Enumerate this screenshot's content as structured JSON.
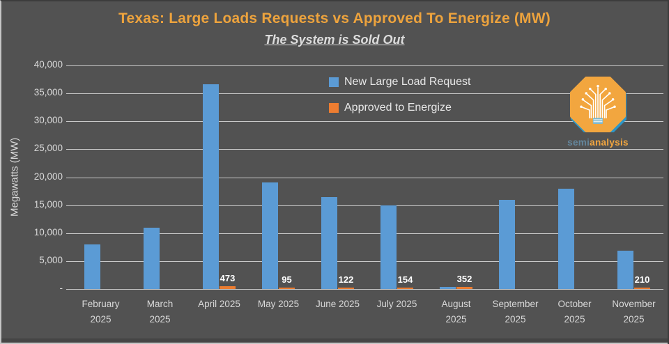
{
  "chart_data": {
    "type": "bar",
    "title": "Texas: Large Loads Requests vs Approved To Energize (MW)",
    "subtitle": "The System is Sold Out",
    "ylabel": "Megawatts (MW)",
    "ylim": [
      0,
      40000
    ],
    "ytick_step": 5000,
    "ytick_labels": [
      "-",
      "5,000",
      "10,000",
      "15,000",
      "20,000",
      "25,000",
      "30,000",
      "35,000",
      "40,000"
    ],
    "grid": true,
    "legend_position": "top-center",
    "categories": [
      "February 2025",
      "March 2025",
      "April 2025",
      "May 2025",
      "June 2025",
      "July 2025",
      "August 2025",
      "September 2025",
      "October 2025",
      "November 2025"
    ],
    "category_label_lines": [
      [
        "February",
        "2025"
      ],
      [
        "March",
        "2025"
      ],
      [
        "April 2025"
      ],
      [
        "May 2025"
      ],
      [
        "June 2025"
      ],
      [
        "July 2025"
      ],
      [
        "August",
        "2025"
      ],
      [
        "September",
        "2025"
      ],
      [
        "October",
        "2025"
      ],
      [
        "November",
        "2025"
      ]
    ],
    "series": [
      {
        "name": "New Large Load Request",
        "color": "#5B9BD5",
        "values": [
          8000,
          11000,
          36600,
          19100,
          16500,
          15000,
          400,
          16000,
          18000,
          6900
        ]
      },
      {
        "name": "Approved to Energize",
        "color": "#ED7D31",
        "values": [
          null,
          null,
          473,
          95,
          122,
          154,
          352,
          null,
          null,
          210
        ]
      }
    ],
    "data_labels": [
      null,
      null,
      "473",
      "95",
      "122",
      "154",
      "352",
      null,
      null,
      "210"
    ],
    "colors": {
      "background": "#525252",
      "title": "#EDA33D",
      "subtitle": "#DCDCDC",
      "grid": "#C9C9C9",
      "axis_text": "#D9D9D9",
      "data_label": "#FFFFFF"
    }
  },
  "logo": {
    "semi": "semi",
    "analysis": "analysis",
    "colors": {
      "octagon": "#F2A63F",
      "octagon_border": "#2C96C8",
      "tree": "#FFFFFF",
      "semi_text": "#64869C",
      "analysis_text": "#F2A63F"
    }
  }
}
